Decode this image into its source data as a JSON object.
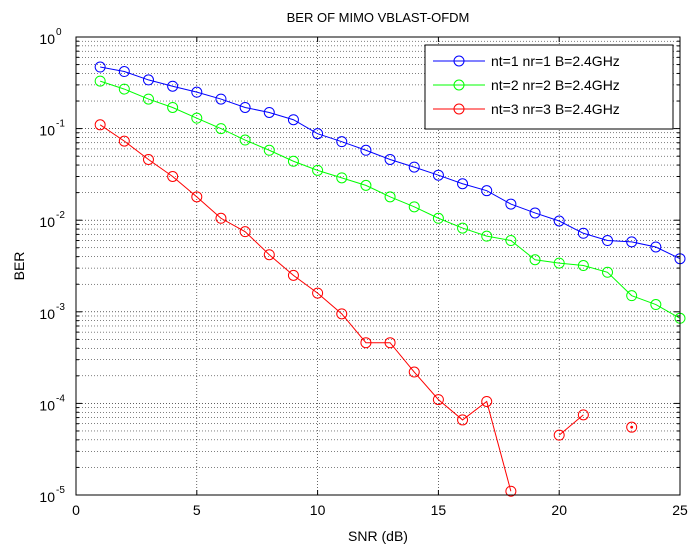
{
  "chart_data": {
    "type": "line",
    "title": "BER OF MIMO VBLAST-OFDM",
    "xlabel": "SNR (dB)",
    "ylabel": "BER",
    "xlim": [
      0,
      25
    ],
    "ylim": [
      1e-05,
      1
    ],
    "y_scale": "log",
    "grid": true,
    "legend_position": "top-right",
    "x_ticks": [
      "0",
      "5",
      "10",
      "15",
      "20",
      "25"
    ],
    "x_tick_values": [
      0,
      5,
      10,
      15,
      20,
      25
    ],
    "y_ticks": [
      {
        "base": "10",
        "exp": "0"
      },
      {
        "base": "10",
        "exp": "-1"
      },
      {
        "base": "10",
        "exp": "-2"
      },
      {
        "base": "10",
        "exp": "-3"
      },
      {
        "base": "10",
        "exp": "-4"
      },
      {
        "base": "10",
        "exp": "-5"
      }
    ],
    "series": [
      {
        "name": "nt=1 nr=1 B=2.4GHz",
        "color": "#0000ff",
        "marker": "circle",
        "x": [
          1,
          2,
          3,
          4,
          5,
          6,
          7,
          8,
          9,
          10,
          11,
          12,
          13,
          14,
          15,
          16,
          17,
          18,
          19,
          20,
          21,
          22,
          23,
          24,
          25
        ],
        "y": [
          0.47,
          0.42,
          0.34,
          0.29,
          0.25,
          0.21,
          0.17,
          0.15,
          0.125,
          0.088,
          0.072,
          0.058,
          0.046,
          0.038,
          0.031,
          0.025,
          0.021,
          0.015,
          0.012,
          0.0098,
          0.0072,
          0.006,
          0.0058,
          0.0051,
          0.0038
        ]
      },
      {
        "name": "nt=2 nr=2 B=2.4GHz",
        "color": "#00ff00",
        "marker": "circle",
        "x": [
          1,
          2,
          3,
          4,
          5,
          6,
          7,
          8,
          9,
          10,
          11,
          12,
          13,
          14,
          15,
          16,
          17,
          18,
          19,
          20,
          21,
          22,
          23,
          24,
          25
        ],
        "y": [
          0.33,
          0.27,
          0.21,
          0.17,
          0.13,
          0.1,
          0.075,
          0.058,
          0.044,
          0.035,
          0.029,
          0.024,
          0.018,
          0.014,
          0.0105,
          0.0082,
          0.0067,
          0.006,
          0.0037,
          0.0034,
          0.0032,
          0.0027,
          0.0015,
          0.0012,
          0.00085
        ]
      },
      {
        "name": "nt=3 nr=3 B=2.4GHz",
        "color": "#ff0000",
        "marker": "circle",
        "x": [
          1,
          2,
          3,
          4,
          5,
          6,
          7,
          8,
          9,
          10,
          11,
          12,
          13,
          14,
          15,
          16,
          17,
          18,
          20,
          21,
          23
        ],
        "y": [
          0.11,
          0.073,
          0.046,
          0.03,
          0.018,
          0.0105,
          0.0075,
          0.0042,
          0.0025,
          0.0016,
          0.00095,
          0.00046,
          0.00046,
          0.00022,
          0.00011,
          6.6e-05,
          0.000105,
          1.1e-05,
          4.5e-05,
          7.5e-05,
          5.5e-05
        ],
        "segments": [
          [
            0,
            17
          ],
          [
            18,
            19
          ],
          [
            20,
            20
          ]
        ]
      }
    ]
  }
}
